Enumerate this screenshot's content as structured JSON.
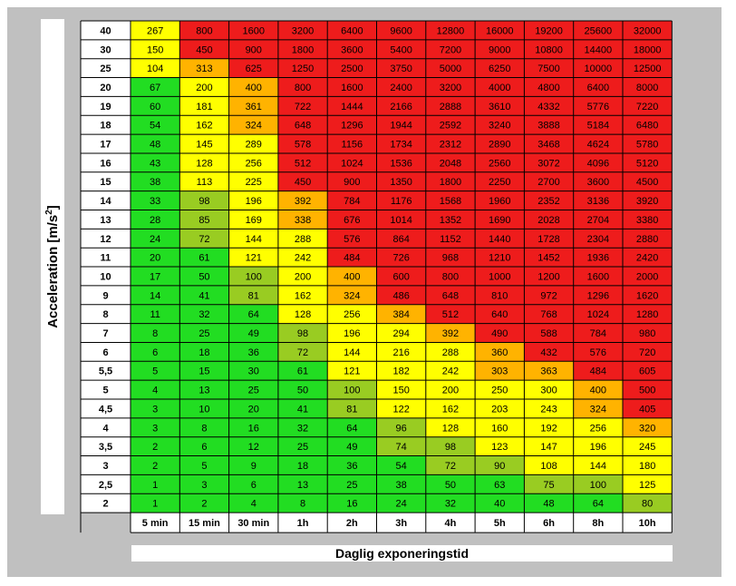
{
  "chart_data": {
    "type": "heatmap",
    "ylabel_main": "Acceleration [m/s",
    "ylabel_sup": "2",
    "ylabel_end": "]",
    "xlabel": "Daglig exponeringstid",
    "rows": [
      "40",
      "30",
      "25",
      "20",
      "19",
      "18",
      "17",
      "16",
      "15",
      "14",
      "13",
      "12",
      "11",
      "10",
      "9",
      "8",
      "7",
      "6",
      "5,5",
      "5",
      "4,5",
      "4",
      "3,5",
      "3",
      "2,5",
      "2"
    ],
    "columns": [
      "5 min",
      "15 min",
      "30 min",
      "1h",
      "2h",
      "3h",
      "4h",
      "5h",
      "6h",
      "8h",
      "10h"
    ],
    "values": [
      [
        267,
        800,
        1600,
        3200,
        6400,
        9600,
        12800,
        16000,
        19200,
        25600,
        32000
      ],
      [
        150,
        450,
        900,
        1800,
        3600,
        5400,
        7200,
        9000,
        10800,
        14400,
        18000
      ],
      [
        104,
        313,
        625,
        1250,
        2500,
        3750,
        5000,
        6250,
        7500,
        10000,
        12500
      ],
      [
        67,
        200,
        400,
        800,
        1600,
        2400,
        3200,
        4000,
        4800,
        6400,
        8000
      ],
      [
        60,
        181,
        361,
        722,
        1444,
        2166,
        2888,
        3610,
        4332,
        5776,
        7220
      ],
      [
        54,
        162,
        324,
        648,
        1296,
        1944,
        2592,
        3240,
        3888,
        5184,
        6480
      ],
      [
        48,
        145,
        289,
        578,
        1156,
        1734,
        2312,
        2890,
        3468,
        4624,
        5780
      ],
      [
        43,
        128,
        256,
        512,
        1024,
        1536,
        2048,
        2560,
        3072,
        4096,
        5120
      ],
      [
        38,
        113,
        225,
        450,
        900,
        1350,
        1800,
        2250,
        2700,
        3600,
        4500
      ],
      [
        33,
        98,
        196,
        392,
        784,
        1176,
        1568,
        1960,
        2352,
        3136,
        3920
      ],
      [
        28,
        85,
        169,
        338,
        676,
        1014,
        1352,
        1690,
        2028,
        2704,
        3380
      ],
      [
        24,
        72,
        144,
        288,
        576,
        864,
        1152,
        1440,
        1728,
        2304,
        2880
      ],
      [
        20,
        61,
        121,
        242,
        484,
        726,
        968,
        1210,
        1452,
        1936,
        2420
      ],
      [
        17,
        50,
        100,
        200,
        400,
        600,
        800,
        1000,
        1200,
        1600,
        2000
      ],
      [
        14,
        41,
        81,
        162,
        324,
        486,
        648,
        810,
        972,
        1296,
        1620
      ],
      [
        11,
        32,
        64,
        128,
        256,
        384,
        512,
        640,
        768,
        1024,
        1280
      ],
      [
        8,
        25,
        49,
        98,
        196,
        294,
        392,
        490,
        588,
        784,
        980
      ],
      [
        6,
        18,
        36,
        72,
        144,
        216,
        288,
        360,
        432,
        576,
        720
      ],
      [
        5,
        15,
        30,
        61,
        121,
        182,
        242,
        303,
        363,
        484,
        605
      ],
      [
        4,
        13,
        25,
        50,
        100,
        150,
        200,
        250,
        300,
        400,
        500
      ],
      [
        3,
        10,
        20,
        41,
        81,
        122,
        162,
        203,
        243,
        324,
        405
      ],
      [
        3,
        8,
        16,
        32,
        64,
        96,
        128,
        160,
        192,
        256,
        320
      ],
      [
        2,
        6,
        12,
        25,
        49,
        74,
        98,
        123,
        147,
        196,
        245
      ],
      [
        2,
        5,
        9,
        18,
        36,
        54,
        72,
        90,
        108,
        144,
        180
      ],
      [
        1,
        3,
        6,
        13,
        25,
        38,
        50,
        63,
        75,
        100,
        125
      ],
      [
        1,
        2,
        4,
        8,
        16,
        24,
        32,
        40,
        48,
        64,
        80
      ]
    ],
    "color_scale": [
      {
        "max": 70,
        "color": "#22dd22"
      },
      {
        "max": 100,
        "color": "#99cc22"
      },
      {
        "max": 300,
        "color": "#ffff00"
      },
      {
        "max": 400,
        "color": "#ffb300"
      },
      {
        "max": 999999,
        "color": "#ee1c1c"
      }
    ],
    "colors": {
      "green": "#22dd22",
      "olive": "#99cc22",
      "yellow": "#ffff00",
      "orange": "#ffb300",
      "red": "#ee1c1c",
      "grid": "#000000",
      "background": "#c0c0c0"
    }
  }
}
